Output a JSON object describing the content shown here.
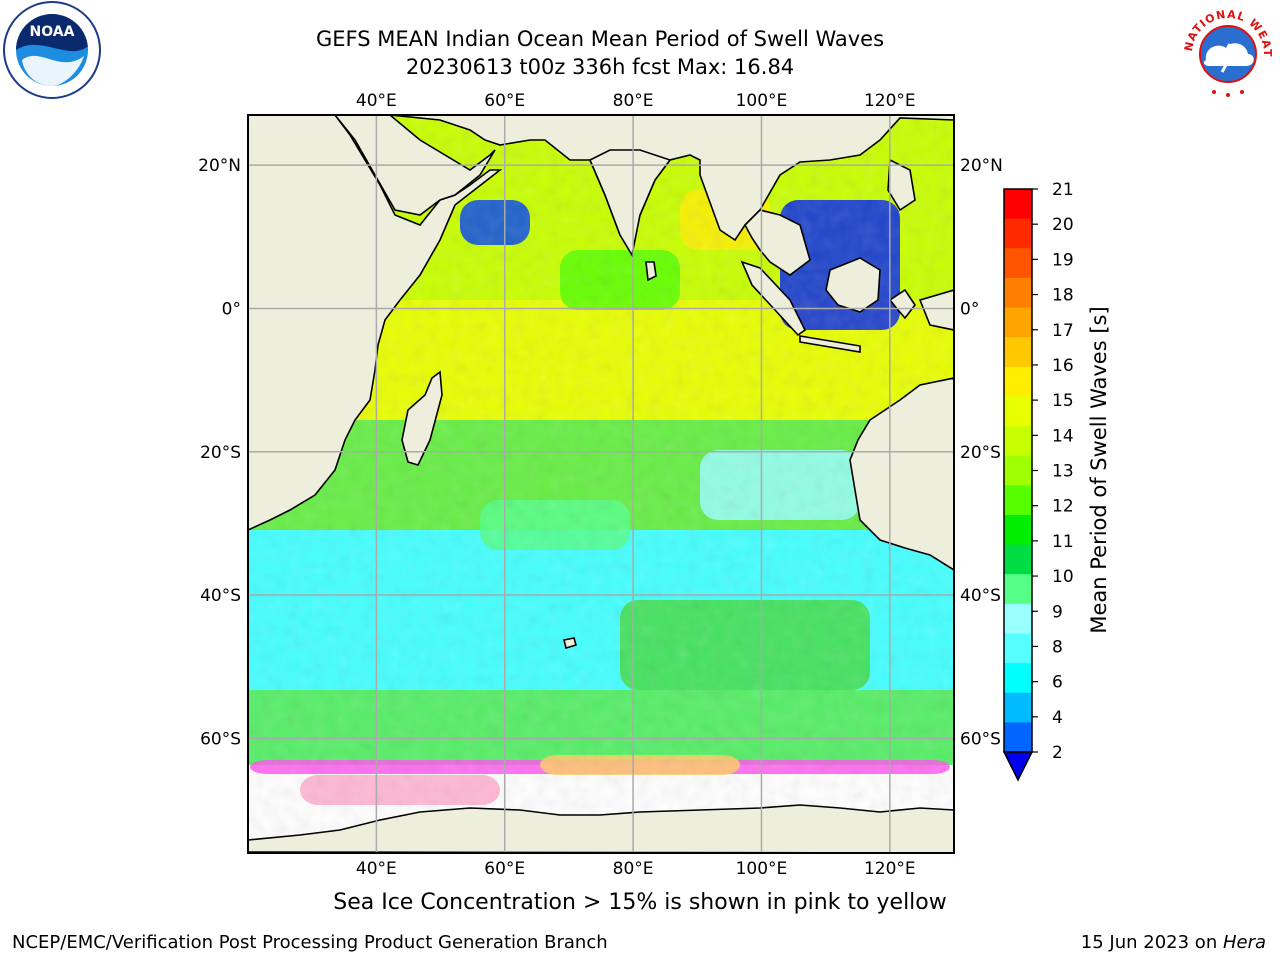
{
  "title": {
    "line1": "GEFS MEAN Indian Ocean Mean Period of Swell Waves",
    "line2": "20230613 t00z 336h fcst   Max: 16.84"
  },
  "axes": {
    "lon_labels": [
      "40°E",
      "60°E",
      "80°E",
      "100°E",
      "120°E"
    ],
    "lat_labels": [
      "20°N",
      "0°",
      "20°S",
      "40°S",
      "60°S"
    ],
    "lon_values": [
      40,
      60,
      80,
      100,
      120
    ],
    "lat_values": [
      20,
      0,
      -20,
      -40,
      -60
    ],
    "lon_range": [
      20,
      130
    ],
    "lat_range": [
      -76,
      27
    ],
    "grid": true
  },
  "colorbar": {
    "label": "Mean Period of Swell Waves [s]",
    "ticks": [
      "21",
      "20",
      "19",
      "18",
      "17",
      "16",
      "15",
      "14",
      "13",
      "12",
      "11",
      "10",
      "9",
      "8",
      "6",
      "4",
      "2"
    ],
    "colors": [
      "#ff0000",
      "#ff2a00",
      "#ff5500",
      "#ff7f00",
      "#ffa500",
      "#ffc800",
      "#ffee00",
      "#e8ff00",
      "#c8ff00",
      "#a0ff00",
      "#55ff00",
      "#00ee00",
      "#00dd44",
      "#55ff88",
      "#99ffff",
      "#55ffff",
      "#00ffff",
      "#00bbff",
      "#0066ff"
    ],
    "extend_min_color": "#0000ee"
  },
  "colors": {
    "land": "#eeeedc",
    "sea_ice": "#ffffff",
    "ice_edge": "#ff55ee"
  },
  "logos": {
    "noaa": "NOAA",
    "nws": "NATIONAL WEATHER SERVICE"
  },
  "annotation": "Sea Ice Concentration > 15% is shown in pink to yellow",
  "footer": {
    "left": "NCEP/EMC/Verification Post Processing Product Generation Branch",
    "right_date": "15 Jun 2023 on ",
    "right_host": "Hera"
  }
}
